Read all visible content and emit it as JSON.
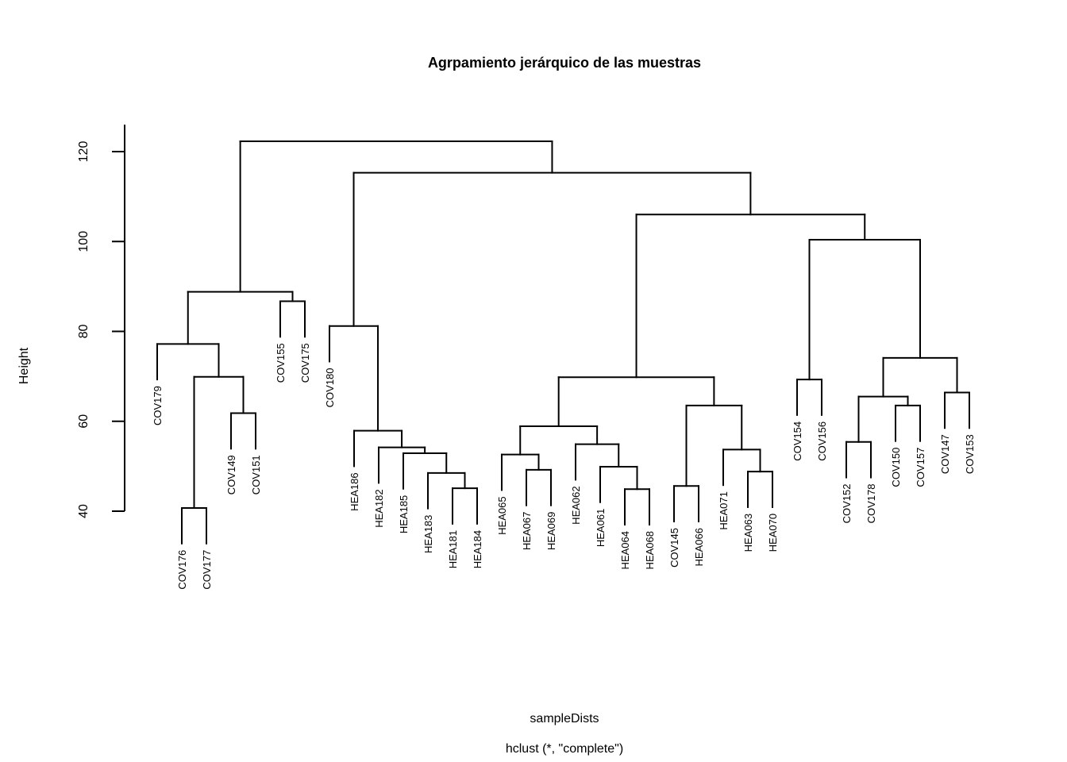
{
  "chart_data": {
    "type": "dendrogram",
    "title": "Agrpamiento jerárquico de las muestras",
    "xlabel": "sampleDists",
    "sub": "hclust (*, \"complete\")",
    "ylabel": "Height",
    "ylim": [
      40,
      125
    ],
    "yticks": [
      40,
      60,
      80,
      100,
      120
    ],
    "leaves": [
      "COV179",
      "COV176",
      "COV177",
      "COV149",
      "COV151",
      "COV155",
      "COV175",
      "COV180",
      "HEA186",
      "HEA182",
      "HEA185",
      "HEA183",
      "HEA181",
      "HEA184",
      "HEA065",
      "HEA067",
      "HEA069",
      "HEA062",
      "HEA061",
      "HEA064",
      "HEA068",
      "COV145",
      "HEA066",
      "HEA071",
      "HEA063",
      "HEA070",
      "COV154",
      "COV156",
      "COV152",
      "COV178",
      "COV150",
      "COV157",
      "COV147",
      "COV153"
    ],
    "merges": [
      {
        "left": "COV176",
        "right": "COV177",
        "height": 40.7
      },
      {
        "left": "COV149",
        "right": "COV151",
        "height": 61.8
      },
      {
        "left": 1,
        "right": 2,
        "height": 69.9
      },
      {
        "left": "COV179",
        "right": 3,
        "height": 77.2
      },
      {
        "left": "COV155",
        "right": "COV175",
        "height": 86.7
      },
      {
        "left": 4,
        "right": 5,
        "height": 88.8
      },
      {
        "left": "HEA181",
        "right": "HEA184",
        "height": 45.1
      },
      {
        "left": "HEA183",
        "right": 7,
        "height": 48.5
      },
      {
        "left": "HEA185",
        "right": 8,
        "height": 52.9
      },
      {
        "left": "HEA182",
        "right": 9,
        "height": 54.2
      },
      {
        "left": "HEA186",
        "right": 10,
        "height": 57.9
      },
      {
        "left": "COV180",
        "right": 11,
        "height": 81.2
      },
      {
        "left": "HEA067",
        "right": "HEA069",
        "height": 49.2
      },
      {
        "left": "HEA065",
        "right": 13,
        "height": 52.6
      },
      {
        "left": "HEA064",
        "right": "HEA068",
        "height": 44.9
      },
      {
        "left": "HEA061",
        "right": 15,
        "height": 49.9
      },
      {
        "left": "HEA062",
        "right": 16,
        "height": 54.9
      },
      {
        "left": 14,
        "right": 17,
        "height": 58.9
      },
      {
        "left": "COV145",
        "right": "HEA066",
        "height": 45.6
      },
      {
        "left": "HEA063",
        "right": "HEA070",
        "height": 48.8
      },
      {
        "left": "HEA071",
        "right": 20,
        "height": 53.7
      },
      {
        "left": 19,
        "right": 21,
        "height": 63.5
      },
      {
        "left": 18,
        "right": 22,
        "height": 69.8
      },
      {
        "left": "COV154",
        "right": "COV156",
        "height": 69.3
      },
      {
        "left": "COV152",
        "right": "COV178",
        "height": 55.4
      },
      {
        "left": "COV150",
        "right": "COV157",
        "height": 63.5
      },
      {
        "left": 25,
        "right": 26,
        "height": 65.5
      },
      {
        "left": "COV147",
        "right": "COV153",
        "height": 66.4
      },
      {
        "left": 27,
        "right": 28,
        "height": 74.1
      },
      {
        "left": 24,
        "right": 29,
        "height": 100.4
      },
      {
        "left": 23,
        "right": 30,
        "height": 106.0
      },
      {
        "left": 12,
        "right": 31,
        "height": 115.3
      },
      {
        "left": 6,
        "right": 32,
        "height": 122.3
      }
    ]
  }
}
